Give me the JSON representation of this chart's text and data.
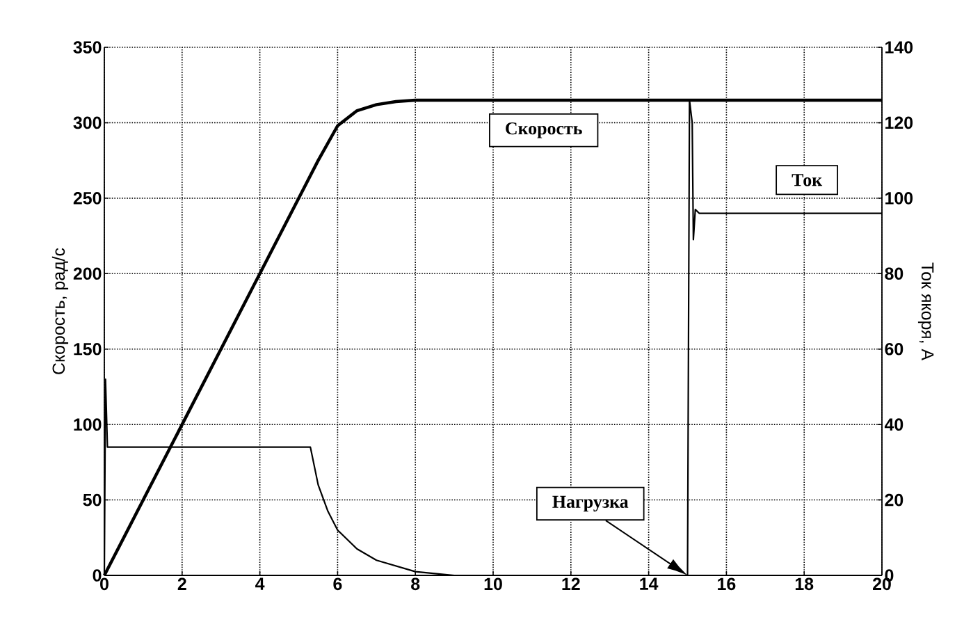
{
  "chart_data": {
    "type": "line",
    "ylabel": "Скорость, рад/с",
    "y2label": "Ток якоря, А",
    "xlim": [
      0,
      20
    ],
    "xticks": [
      0,
      2,
      4,
      6,
      8,
      10,
      12,
      14,
      16,
      18,
      20
    ],
    "ylim": [
      0,
      350
    ],
    "yticks": [
      0,
      50,
      100,
      150,
      200,
      250,
      300,
      350
    ],
    "y2lim": [
      0,
      140
    ],
    "y2ticks": [
      0,
      20,
      40,
      60,
      80,
      100,
      120,
      140
    ],
    "grid": true,
    "annotations": [
      "Нагрузка"
    ],
    "series": [
      {
        "name": "Скорость",
        "color": "#000000",
        "x": [
          0,
          1,
          2,
          3,
          4,
          5,
          5.5,
          6,
          6.5,
          7,
          7.5,
          8,
          10,
          15,
          15.1,
          20
        ],
        "values": [
          0,
          50,
          100,
          150,
          200,
          250,
          275,
          298,
          308,
          312,
          314,
          315,
          315,
          315,
          315,
          315
        ]
      },
      {
        "name": "Ток",
        "color": "#000000",
        "axis": "y2",
        "x": [
          0,
          0.03,
          0.08,
          5.3,
          5.5,
          5.75,
          6,
          6.5,
          7,
          7.5,
          8,
          8.5,
          9,
          15,
          15.05,
          15.12,
          15.15,
          15.2,
          15.3,
          20
        ],
        "values": [
          0,
          52,
          34,
          34,
          24,
          17,
          12,
          7,
          4,
          2.5,
          1,
          0.5,
          0,
          0,
          126,
          120,
          89,
          97,
          96,
          96
        ]
      }
    ]
  }
}
